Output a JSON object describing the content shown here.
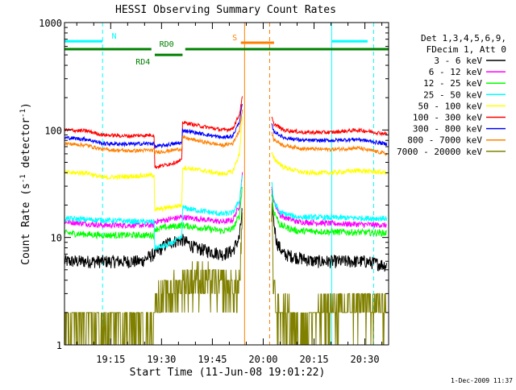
{
  "chart_data": {
    "type": "line",
    "title": "HESSI Observing Summary Count Rates",
    "xlabel": "Start Time (11-Jun-08 19:01:22)",
    "ylabel_main": "Count Rate (s",
    "ylabel_sup1": "-1",
    "ylabel_mid": " detector",
    "ylabel_sup2": "-1",
    "ylabel_end": ")",
    "y_scale": "log",
    "ylim": [
      1,
      1000
    ],
    "xlim_minutes": [
      1.37,
      97
    ],
    "x_ticks": [
      {
        "label": "19:15",
        "minute": 15
      },
      {
        "label": "19:30",
        "minute": 30
      },
      {
        "label": "19:45",
        "minute": 45
      },
      {
        "label": "20:00",
        "minute": 60
      },
      {
        "label": "20:15",
        "minute": 75
      },
      {
        "label": "20:30",
        "minute": 90
      }
    ],
    "y_ticks": [
      {
        "label": "1",
        "value": 1
      },
      {
        "label": "10",
        "value": 10
      },
      {
        "label": "100",
        "value": 100
      },
      {
        "label": "1000",
        "value": 1000
      }
    ],
    "legend_header": [
      "Det 1,3,4,5,6,9,",
      "FDecim 1, Att 0"
    ],
    "legend_position": "right",
    "footer_date": "1-Dec-2009 11:37",
    "flags": [
      {
        "name": "N",
        "color": "#00ffff",
        "level": 670,
        "segments": [
          [
            1.37,
            12.6
          ],
          [
            80.2,
            90.8
          ]
        ],
        "label_minute": 16.0
      },
      {
        "name": "S",
        "color": "#ff8000",
        "level": 650,
        "segments": [
          [
            53.4,
            63.2
          ]
        ],
        "label_minute": 51.6
      },
      {
        "name": "RD0",
        "color": "#008000",
        "level": 565,
        "segments": [
          [
            1.37,
            27.0
          ],
          [
            37.0,
            97.0
          ]
        ],
        "label_minute": 31.5
      },
      {
        "name": "RD4",
        "color": "#008000",
        "level": 500,
        "segments": [
          [
            28.0,
            36.2
          ]
        ],
        "label_minute": 24.5
      }
    ],
    "vertical_markers": [
      {
        "minute": 1.37,
        "color": "#00ffff",
        "style": "solid"
      },
      {
        "minute": 12.6,
        "color": "#00ffff",
        "style": "dashed"
      },
      {
        "minute": 54.5,
        "color": "#ff8000",
        "style": "solid"
      },
      {
        "minute": 61.9,
        "color": "#ff8000",
        "style": "dashed"
      },
      {
        "minute": 80.2,
        "color": "#00ffff",
        "style": "solid"
      },
      {
        "minute": 92.6,
        "color": "#00ffff",
        "style": "dashed"
      }
    ],
    "gap": [
      53.9,
      62.4
    ],
    "series": [
      {
        "name": "3 - 6 keV",
        "color": "#000000",
        "noise": 0.14,
        "points": [
          [
            1.4,
            6
          ],
          [
            12.6,
            6
          ],
          [
            13,
            6
          ],
          [
            24,
            6
          ],
          [
            27,
            6.8
          ],
          [
            28,
            7
          ],
          [
            32,
            9
          ],
          [
            36.2,
            9.5
          ],
          [
            40,
            8
          ],
          [
            48,
            7
          ],
          [
            51,
            7.5
          ],
          [
            53,
            10
          ],
          [
            53.8,
            18
          ],
          [
            62.6,
            25
          ],
          [
            63,
            15
          ],
          [
            64,
            9
          ],
          [
            66,
            7
          ],
          [
            75,
            6
          ],
          [
            90,
            6
          ],
          [
            96.5,
            5.5
          ]
        ]
      },
      {
        "name": "6 - 12 keV",
        "color": "#ff00ff",
        "noise": 0.06,
        "points": [
          [
            1.4,
            14
          ],
          [
            12.6,
            13
          ],
          [
            13,
            13
          ],
          [
            24,
            13
          ],
          [
            27.8,
            13
          ],
          [
            28,
            14
          ],
          [
            36,
            15.5
          ],
          [
            40,
            15
          ],
          [
            48,
            14
          ],
          [
            51,
            14.5
          ],
          [
            53,
            20
          ],
          [
            53.8,
            40
          ],
          [
            62.6,
            28
          ],
          [
            63,
            22
          ],
          [
            65,
            16
          ],
          [
            70,
            14
          ],
          [
            80,
            13.5
          ],
          [
            96.5,
            13
          ]
        ]
      },
      {
        "name": "12 - 25 keV",
        "color": "#00ff00",
        "noise": 0.07,
        "points": [
          [
            1.4,
            11
          ],
          [
            12.6,
            10.5
          ],
          [
            24,
            10.5
          ],
          [
            27.8,
            10.5
          ],
          [
            28,
            12
          ],
          [
            36,
            13
          ],
          [
            40,
            12.5
          ],
          [
            48,
            11.5
          ],
          [
            51,
            12
          ],
          [
            53,
            16
          ],
          [
            53.8,
            30
          ],
          [
            62.6,
            25
          ],
          [
            63,
            18
          ],
          [
            65,
            13
          ],
          [
            70,
            11.5
          ],
          [
            96.5,
            11
          ]
        ]
      },
      {
        "name": "25 - 50 keV",
        "color": "#00ffff",
        "noise": 0.06,
        "points": [
          [
            1.4,
            15
          ],
          [
            12.6,
            14.5
          ],
          [
            24,
            14
          ],
          [
            27.8,
            14
          ],
          [
            28,
            8
          ],
          [
            32,
            8.5
          ],
          [
            36,
            10
          ],
          [
            36.2,
            19
          ],
          [
            40,
            18
          ],
          [
            48,
            16.5
          ],
          [
            51,
            17
          ],
          [
            53,
            22
          ],
          [
            53.8,
            38
          ],
          [
            62.6,
            32
          ],
          [
            63,
            22
          ],
          [
            65,
            17
          ],
          [
            70,
            15.5
          ],
          [
            96.5,
            15
          ]
        ]
      },
      {
        "name": "50 - 100 keV",
        "color": "#ffff00",
        "noise": 0.05,
        "points": [
          [
            1.4,
            40
          ],
          [
            8,
            40
          ],
          [
            12.6,
            36
          ],
          [
            20,
            37
          ],
          [
            27.8,
            38
          ],
          [
            28,
            18
          ],
          [
            32,
            19
          ],
          [
            36,
            20
          ],
          [
            36.2,
            45
          ],
          [
            42,
            42
          ],
          [
            48,
            39
          ],
          [
            51,
            41
          ],
          [
            53,
            60
          ],
          [
            53.8,
            130
          ],
          [
            62.6,
            60
          ],
          [
            63,
            55
          ],
          [
            66,
            45
          ],
          [
            72,
            40
          ],
          [
            80,
            40
          ],
          [
            88,
            42
          ],
          [
            96.5,
            40
          ]
        ]
      },
      {
        "name": "100 - 300 keV",
        "color": "#ff0000",
        "noise": 0.04,
        "points": [
          [
            1.4,
            100
          ],
          [
            8,
            98
          ],
          [
            12.6,
            90
          ],
          [
            20,
            88
          ],
          [
            27.8,
            90
          ],
          [
            28,
            45
          ],
          [
            32,
            48
          ],
          [
            36,
            52
          ],
          [
            36.2,
            118
          ],
          [
            42,
            108
          ],
          [
            48,
            100
          ],
          [
            51,
            103
          ],
          [
            53,
            140
          ],
          [
            53.8,
            200
          ],
          [
            62.6,
            130
          ],
          [
            63,
            115
          ],
          [
            66,
            100
          ],
          [
            72,
            95
          ],
          [
            80,
            95
          ],
          [
            88,
            100
          ],
          [
            96.5,
            92
          ]
        ]
      },
      {
        "name": "300 - 800 keV",
        "color": "#0000ff",
        "noise": 0.04,
        "points": [
          [
            1.4,
            85
          ],
          [
            8,
            82
          ],
          [
            12.6,
            75
          ],
          [
            20,
            74
          ],
          [
            27.8,
            75
          ],
          [
            28,
            70
          ],
          [
            32,
            73
          ],
          [
            36,
            76
          ],
          [
            36.2,
            100
          ],
          [
            42,
            92
          ],
          [
            48,
            85
          ],
          [
            51,
            88
          ],
          [
            53,
            120
          ],
          [
            53.8,
            175
          ],
          [
            62.6,
            110
          ],
          [
            63,
            98
          ],
          [
            66,
            85
          ],
          [
            72,
            80
          ],
          [
            80,
            80
          ],
          [
            88,
            82
          ],
          [
            96.5,
            74
          ]
        ]
      },
      {
        "name": "800 - 7000 keV",
        "color": "#ff8000",
        "noise": 0.04,
        "points": [
          [
            1.4,
            75
          ],
          [
            8,
            72
          ],
          [
            12.6,
            66
          ],
          [
            20,
            64
          ],
          [
            27.8,
            65
          ],
          [
            28,
            62
          ],
          [
            32,
            64
          ],
          [
            36,
            67
          ],
          [
            36.2,
            85
          ],
          [
            42,
            78
          ],
          [
            48,
            72
          ],
          [
            51,
            75
          ],
          [
            53,
            100
          ],
          [
            53.8,
            150
          ],
          [
            62.6,
            95
          ],
          [
            63,
            82
          ],
          [
            66,
            72
          ],
          [
            72,
            67
          ],
          [
            80,
            66
          ],
          [
            88,
            68
          ],
          [
            96.5,
            60
          ]
        ]
      },
      {
        "name": "7000 - 20000 keV",
        "color": "#808000",
        "noise": 0,
        "points": [
          [
            1.4,
            1.5
          ],
          [
            12.6,
            1.5
          ],
          [
            24,
            1.5
          ],
          [
            27.8,
            1.7
          ],
          [
            28,
            2.4
          ],
          [
            32,
            3
          ],
          [
            36,
            3.5
          ],
          [
            40,
            4
          ],
          [
            48,
            3.5
          ],
          [
            51,
            3
          ],
          [
            53,
            3.5
          ],
          [
            53.8,
            12
          ],
          [
            62.6,
            14
          ],
          [
            63,
            4
          ],
          [
            64,
            2
          ],
          [
            72,
            1.5
          ],
          [
            80,
            2
          ],
          [
            88,
            2.2
          ],
          [
            96.5,
            2.3
          ]
        ]
      }
    ]
  }
}
